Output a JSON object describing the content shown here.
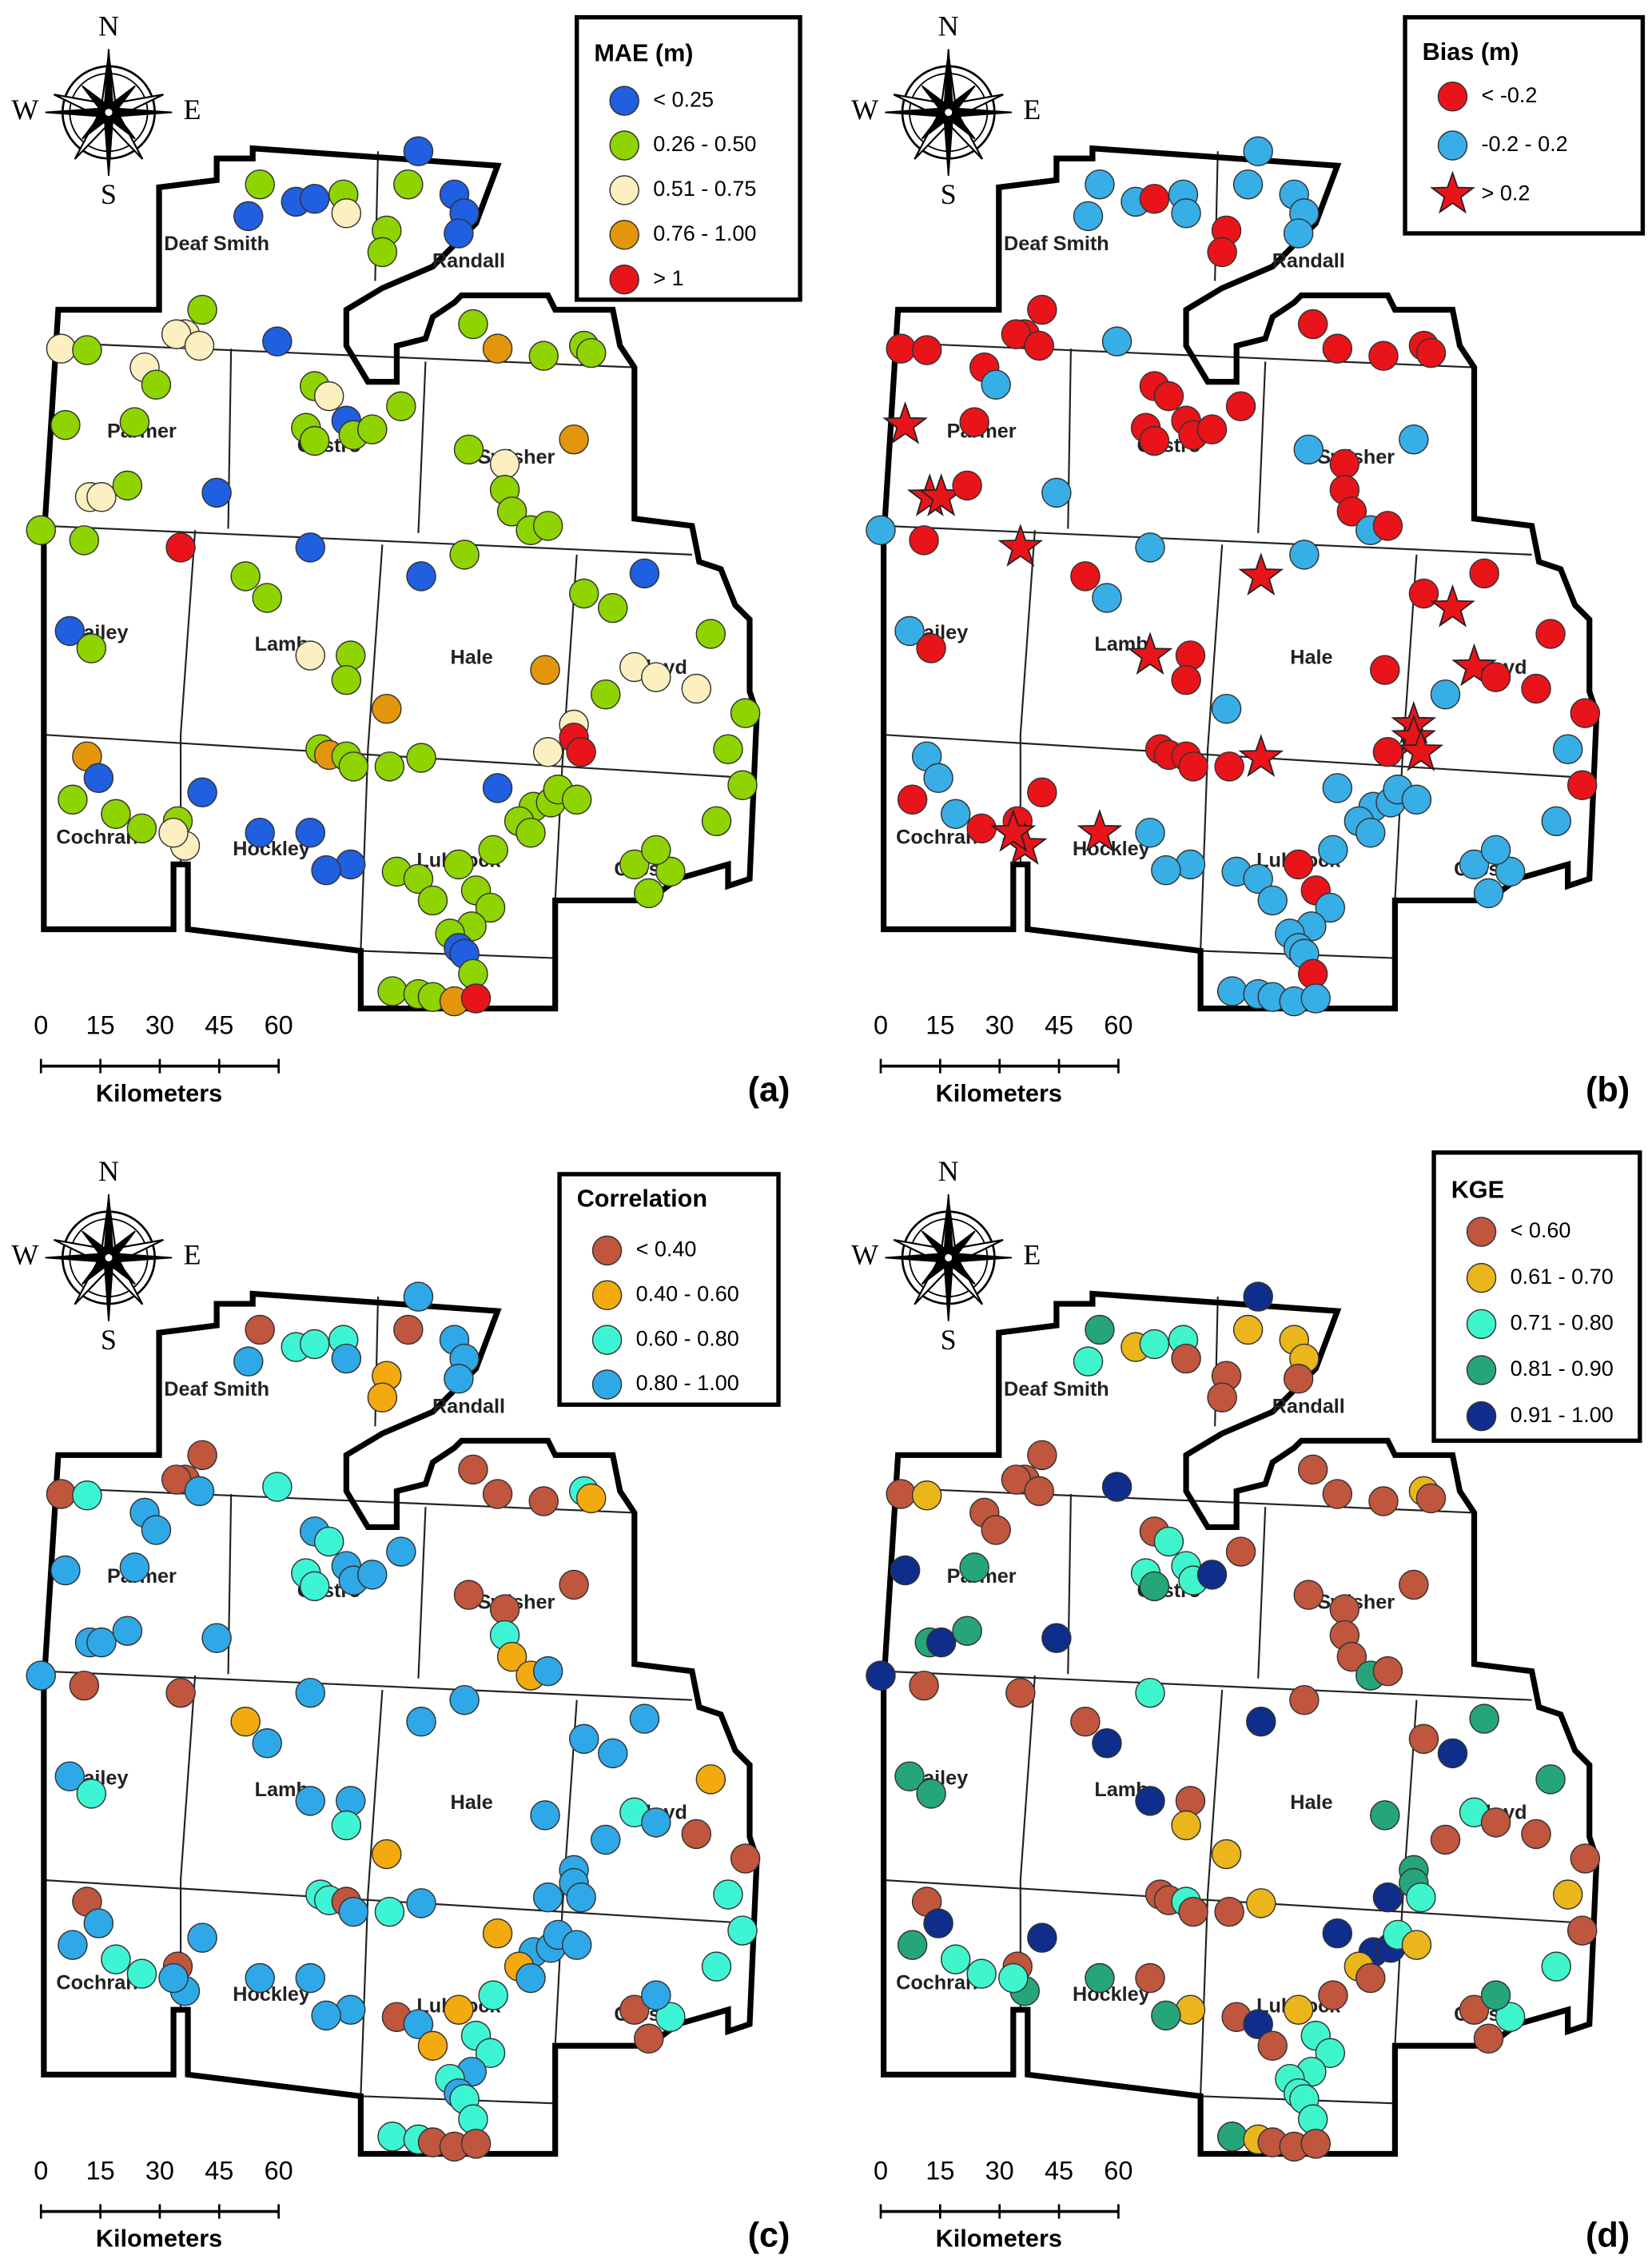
{
  "compass": {
    "north": "N",
    "south": "S",
    "west": "W",
    "east": "E"
  },
  "counties": [
    "Deaf Smith",
    "Randall",
    "Parmer",
    "Castro",
    "Swisher",
    "Bailey",
    "Lamb",
    "Hale",
    "Floyd",
    "Cochran",
    "Hockley",
    "Lubbock",
    "Crosby"
  ],
  "scale_bar": {
    "ticks": [
      0,
      15,
      30,
      45,
      60
    ],
    "unit": "Kilometers"
  },
  "panels": [
    {
      "label": "(a)",
      "legend": {
        "title": "MAE (m)",
        "items": [
          {
            "label": "< 0.25",
            "color": "#1f5fe0"
          },
          {
            "label": "0.26 - 0.50",
            "color": "#8fd400"
          },
          {
            "label": "0.51 - 0.75",
            "color": "#fcefc0"
          },
          {
            "label": "0.76 - 1.00",
            "color": "#e3960c"
          },
          {
            "label": "> 1",
            "color": "#e8141a"
          }
        ]
      }
    },
    {
      "label": "(b)",
      "legend": {
        "title": "Bias (m)",
        "items": [
          {
            "label": "< -0.2",
            "color": "#e8141a"
          },
          {
            "label": "-0.2 - 0.2",
            "color": "#38aee6"
          },
          {
            "label": "> 0.2",
            "color": "#e8141a",
            "marker": "star"
          }
        ]
      }
    },
    {
      "label": "(c)",
      "legend": {
        "title": "Correlation",
        "items": [
          {
            "label": "< 0.40",
            "color": "#c0563e"
          },
          {
            "label": "0.40 - 0.60",
            "color": "#f2aa0f"
          },
          {
            "label": "0.60 - 0.80",
            "color": "#3df5d5"
          },
          {
            "label": "0.80 - 1.00",
            "color": "#2fa8e8"
          }
        ]
      }
    },
    {
      "label": "(d)",
      "legend": {
        "title": "KGE",
        "items": [
          {
            "label": "< 0.60",
            "color": "#c0563e"
          },
          {
            "label": "0.61 - 0.70",
            "color": "#ebb51c"
          },
          {
            "label": "0.71 - 0.80",
            "color": "#3ff5cc"
          },
          {
            "label": "0.81 - 0.90",
            "color": "#26a57a"
          },
          {
            "label": "0.91 - 1.00",
            "color": "#0f2d8a"
          }
        ]
      }
    }
  ]
}
